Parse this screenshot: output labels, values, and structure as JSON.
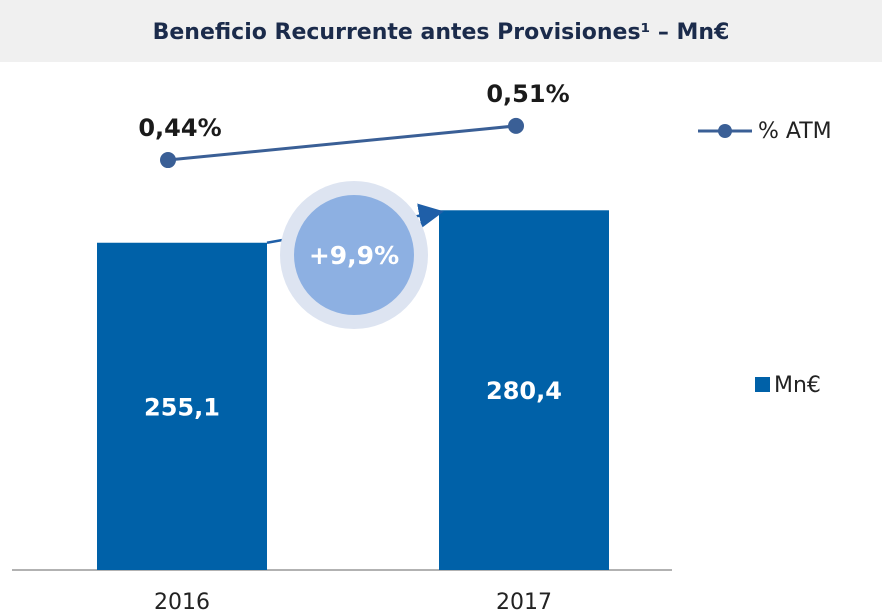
{
  "chart_data": {
    "type": "bar",
    "title": "Beneficio Recurrente antes Provisiones¹ – Mn€",
    "categories": [
      "2016",
      "2017"
    ],
    "series": [
      {
        "name": "Mn€",
        "type": "bar",
        "color": "#0061a8",
        "values": [
          255.1,
          280.4
        ],
        "value_labels": [
          "255,1",
          "280,4"
        ]
      },
      {
        "name": "% ATM",
        "type": "line",
        "axis": "y2",
        "color": "#3a5f96",
        "values": [
          0.44,
          0.51
        ],
        "value_labels": [
          "0,44%",
          "0,51%"
        ]
      }
    ],
    "annotation": "+9,9%",
    "ylim": [
      0,
      350
    ],
    "y2lim": [
      -0.4,
      0.52
    ]
  }
}
